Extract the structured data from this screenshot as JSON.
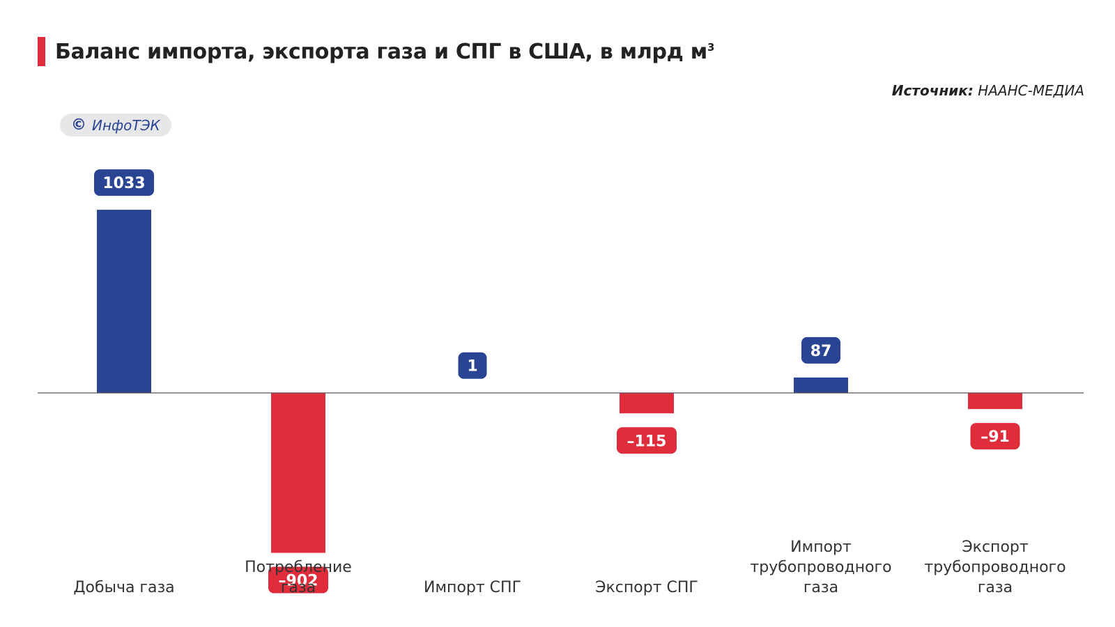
{
  "header": {
    "title": "Баланс импорта, экспорта газа и СПГ в США, в млрд м",
    "title_superscript": "3",
    "source_label": "Источник:",
    "source_value": "НААНС-МЕДИА",
    "brand_symbol": "©",
    "brand_name": "ИнфоТЭК"
  },
  "colors": {
    "positive": "#2a4494",
    "negative": "#e02d3c",
    "accent": "#e02d3c",
    "axis": "#555555",
    "brand_bg": "#e7e7ea"
  },
  "chart_data": {
    "type": "bar",
    "title": "Баланс импорта, экспорта газа и СПГ в США, в млрд м3",
    "xlabel": "",
    "ylabel": "",
    "ylim": [
      -902,
      1033
    ],
    "grid": false,
    "categories": [
      [
        "Добыча газа"
      ],
      [
        "Потребление",
        "газа"
      ],
      [
        "Импорт СПГ"
      ],
      [
        "Экспорт СПГ"
      ],
      [
        "Импорт",
        "трубопроводного",
        "газа"
      ],
      [
        "Экспорт",
        "трубопроводного",
        "газа"
      ]
    ],
    "values": [
      1033,
      -902,
      1,
      -115,
      87,
      -91
    ],
    "value_labels": [
      "1033",
      "–902",
      "1",
      "–115",
      "87",
      "–91"
    ]
  }
}
